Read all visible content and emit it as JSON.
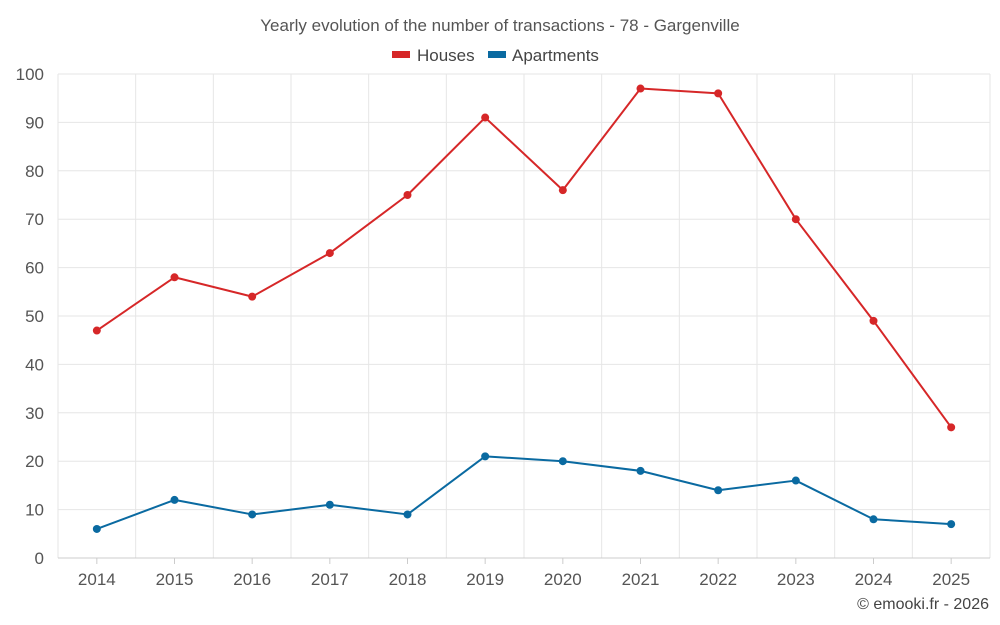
{
  "chart_data": {
    "type": "line",
    "title": "Yearly evolution of the number of transactions - 78 - Gargenville",
    "categories": [
      "2014",
      "2015",
      "2016",
      "2017",
      "2018",
      "2019",
      "2020",
      "2021",
      "2022",
      "2023",
      "2024",
      "2025"
    ],
    "series": [
      {
        "name": "Houses",
        "color": "#d62728",
        "values": [
          47,
          58,
          54,
          63,
          75,
          91,
          76,
          97,
          96,
          70,
          49,
          27
        ]
      },
      {
        "name": "Apartments",
        "color": "#0a6aa1",
        "values": [
          6,
          12,
          9,
          11,
          9,
          21,
          20,
          18,
          14,
          16,
          8,
          7
        ]
      }
    ],
    "yticks": [
      0,
      10,
      20,
      30,
      40,
      50,
      60,
      70,
      80,
      90,
      100
    ],
    "ylim": [
      0,
      100
    ],
    "xlabel": "",
    "ylabel": "",
    "legend_position": "top-center",
    "grid": true
  },
  "credit": "© emooki.fr - 2026"
}
